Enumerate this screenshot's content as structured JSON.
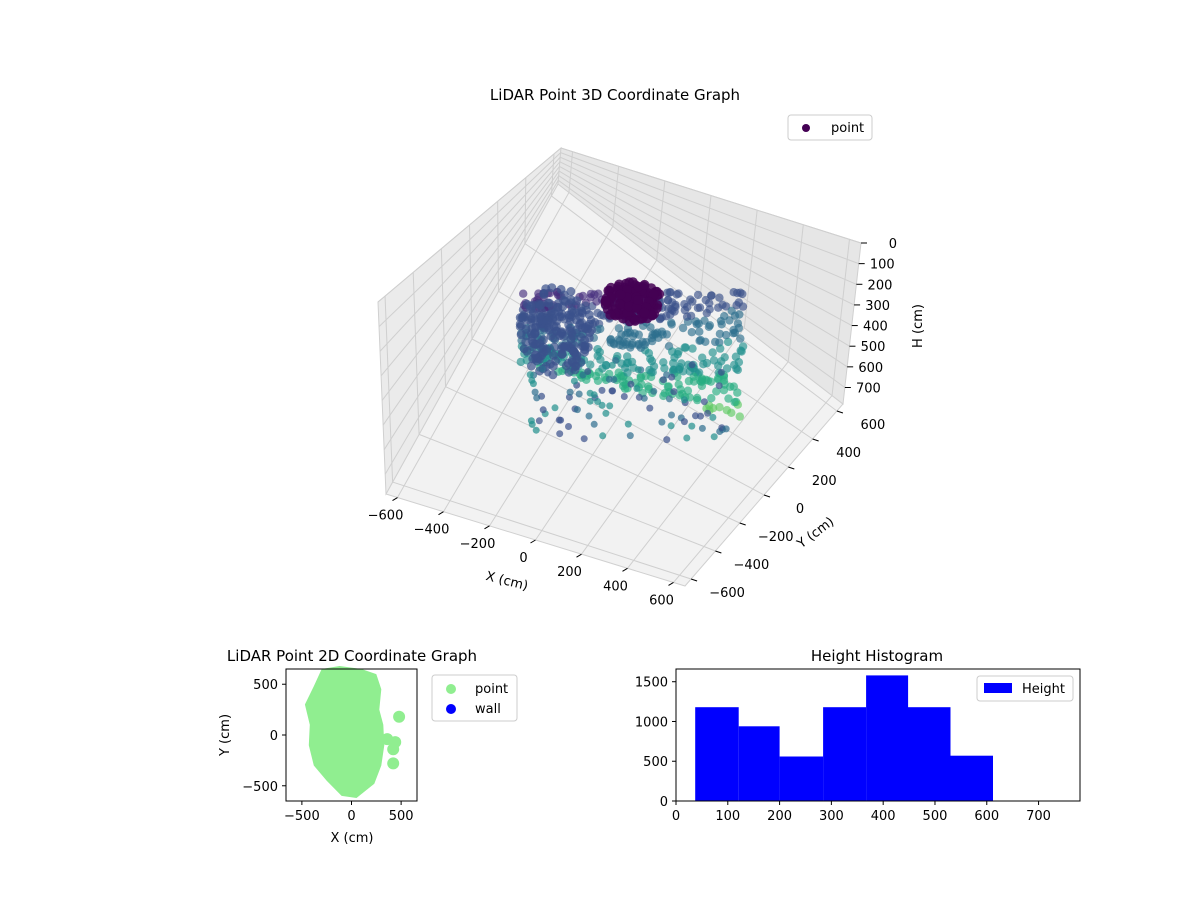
{
  "chart_data": [
    {
      "type": "scatter3d",
      "title": "LiDAR Point 3D Coordinate Graph",
      "xlabel": "X (cm)",
      "ylabel": "Y (cm)",
      "zlabel": "H (cm)",
      "xticks": [
        -600,
        -400,
        -200,
        0,
        200,
        400,
        600
      ],
      "yticks": [
        -600,
        -400,
        -200,
        0,
        200,
        400,
        600
      ],
      "zticks": [
        0,
        100,
        200,
        300,
        400,
        500,
        600,
        700
      ],
      "xlim": [
        -650,
        650
      ],
      "ylim": [
        -650,
        650
      ],
      "zlim": [
        780,
        0
      ],
      "legend": {
        "entries": [
          "point"
        ],
        "placement": "upper-right"
      },
      "colormap": "viridis",
      "grid": true
    },
    {
      "type": "scatter",
      "title": "LiDAR Point 2D Coordinate Graph",
      "xlabel": "X (cm)",
      "ylabel": "Y (cm)",
      "xticks": [
        -500,
        0,
        500
      ],
      "yticks": [
        -500,
        0,
        500
      ],
      "xlim": [
        -660,
        660
      ],
      "ylim": [
        -650,
        650
      ],
      "series": [
        {
          "name": "point",
          "color": "#90ee90"
        },
        {
          "name": "wall",
          "color": "#0000ff"
        }
      ],
      "legend": {
        "placement": "outside-right"
      }
    },
    {
      "type": "bar",
      "title": "Height Histogram",
      "bins": [
        {
          "from": 37,
          "to": 121,
          "count": 1180
        },
        {
          "from": 121,
          "to": 200,
          "count": 940
        },
        {
          "from": 200,
          "to": 284,
          "count": 560
        },
        {
          "from": 284,
          "to": 367,
          "count": 1180
        },
        {
          "from": 367,
          "to": 448,
          "count": 1580
        },
        {
          "from": 448,
          "to": 530,
          "count": 1180
        },
        {
          "from": 530,
          "to": 612,
          "count": 570
        }
      ],
      "xticks": [
        0,
        100,
        200,
        300,
        400,
        500,
        600,
        700
      ],
      "yticks": [
        0,
        500,
        1000,
        1500
      ],
      "xlim": [
        0,
        780
      ],
      "ylim": [
        0,
        1660
      ],
      "series": [
        {
          "name": "Height",
          "color": "#0000ff"
        }
      ],
      "legend": {
        "placement": "upper-right"
      }
    }
  ]
}
